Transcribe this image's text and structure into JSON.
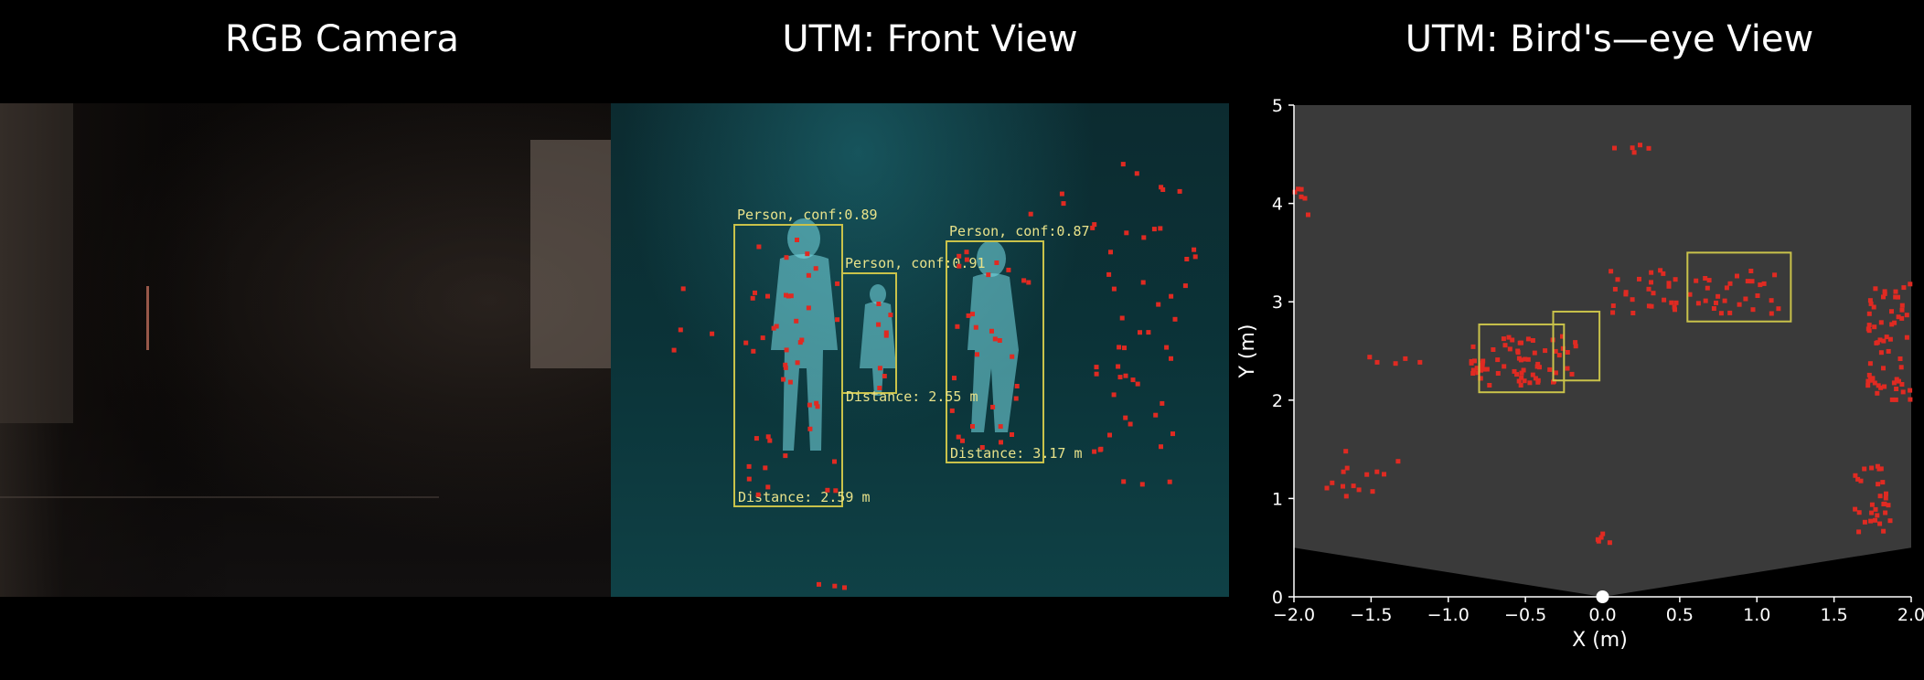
{
  "titles": {
    "rgb": "RGB Camera",
    "front": "UTM: Front View",
    "bird": "UTM: Bird's—eye View"
  },
  "front_view": {
    "detections": [
      {
        "label": "Person, conf:0.89",
        "distance": "Distance: 2.59 m"
      },
      {
        "label": "Person, conf:0.91",
        "distance": "Distance: 2.55 m"
      },
      {
        "label": "Person, conf:0.87",
        "distance": "Distance: 3.17 m"
      }
    ]
  },
  "colors": {
    "detection_box": "#c9c24a",
    "point": "#e02a22",
    "plot_bg": "#3a3a3a"
  },
  "chart_data": {
    "type": "scatter",
    "title": "UTM: Bird's—eye View",
    "xlabel": "X (m)",
    "ylabel": "Y (m)",
    "xlim": [
      -2.0,
      2.0
    ],
    "ylim": [
      0,
      5
    ],
    "xticks": [
      "−2.0",
      "−1.5",
      "−1.0",
      "−0.5",
      "0.0",
      "0.5",
      "1.0",
      "1.5",
      "2.0"
    ],
    "yticks": [
      "0",
      "1",
      "2",
      "3",
      "4",
      "5"
    ],
    "boxes": [
      {
        "x0": -0.8,
        "x1": -0.25,
        "y0": 2.08,
        "y1": 2.77
      },
      {
        "x0": -0.32,
        "x1": -0.02,
        "y0": 2.2,
        "y1": 2.9
      },
      {
        "x0": 0.55,
        "x1": 1.22,
        "y0": 2.8,
        "y1": 3.5
      }
    ],
    "clusters": [
      {
        "x": -0.5,
        "y": 2.4,
        "spread_x": 0.35,
        "spread_y": 0.25,
        "count": 70
      },
      {
        "x": 0.6,
        "y": 3.1,
        "spread_x": 0.55,
        "spread_y": 0.22,
        "count": 55
      },
      {
        "x": 1.85,
        "y": 2.6,
        "spread_x": 0.15,
        "spread_y": 0.6,
        "count": 60
      },
      {
        "x": 1.75,
        "y": 1.0,
        "spread_x": 0.12,
        "spread_y": 0.35,
        "count": 30
      },
      {
        "x": -1.55,
        "y": 1.25,
        "spread_x": 0.25,
        "spread_y": 0.25,
        "count": 14
      },
      {
        "x": -1.95,
        "y": 4.0,
        "spread_x": 0.05,
        "spread_y": 0.15,
        "count": 6
      },
      {
        "x": -1.35,
        "y": 2.4,
        "spread_x": 0.2,
        "spread_y": 0.05,
        "count": 5
      },
      {
        "x": 0.0,
        "y": 0.6,
        "spread_x": 0.05,
        "spread_y": 0.05,
        "count": 5
      },
      {
        "x": 0.2,
        "y": 4.55,
        "spread_x": 0.15,
        "spread_y": 0.05,
        "count": 5
      }
    ],
    "sensor_origin": {
      "x": 0.0,
      "y": 0.0
    }
  }
}
